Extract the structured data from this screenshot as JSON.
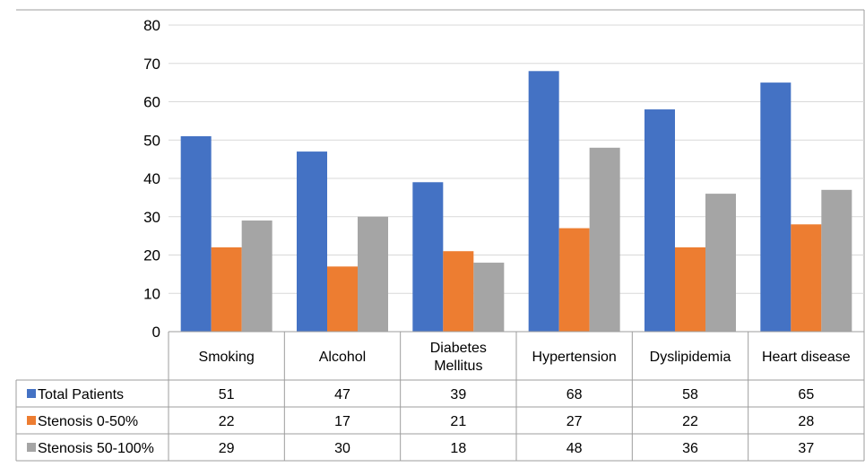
{
  "chart_data": {
    "type": "bar",
    "categories": [
      "Smoking",
      "Alcohol",
      "Diabetes Mellitus",
      "Hypertension",
      "Dyslipidemia",
      "Heart disease"
    ],
    "category_lines": [
      [
        "Smoking"
      ],
      [
        "Alcohol"
      ],
      [
        "Diabetes",
        "Mellitus"
      ],
      [
        "Hypertension"
      ],
      [
        "Dyslipidemia"
      ],
      [
        "Heart disease"
      ]
    ],
    "series": [
      {
        "name": "Total Patients",
        "color": "#4472C4",
        "values": [
          51,
          47,
          39,
          68,
          58,
          65
        ]
      },
      {
        "name": "Stenosis 0-50%",
        "color": "#ED7D31",
        "values": [
          22,
          17,
          21,
          27,
          22,
          28
        ]
      },
      {
        "name": "Stenosis 50-100%",
        "color": "#A5A5A5",
        "values": [
          29,
          30,
          18,
          48,
          36,
          37
        ]
      }
    ],
    "ylim": [
      0,
      80
    ],
    "yticks": [
      0,
      10,
      20,
      30,
      40,
      50,
      60,
      70,
      80
    ],
    "title": "",
    "xlabel": "",
    "ylabel": "",
    "grid": true,
    "data_table": true
  }
}
